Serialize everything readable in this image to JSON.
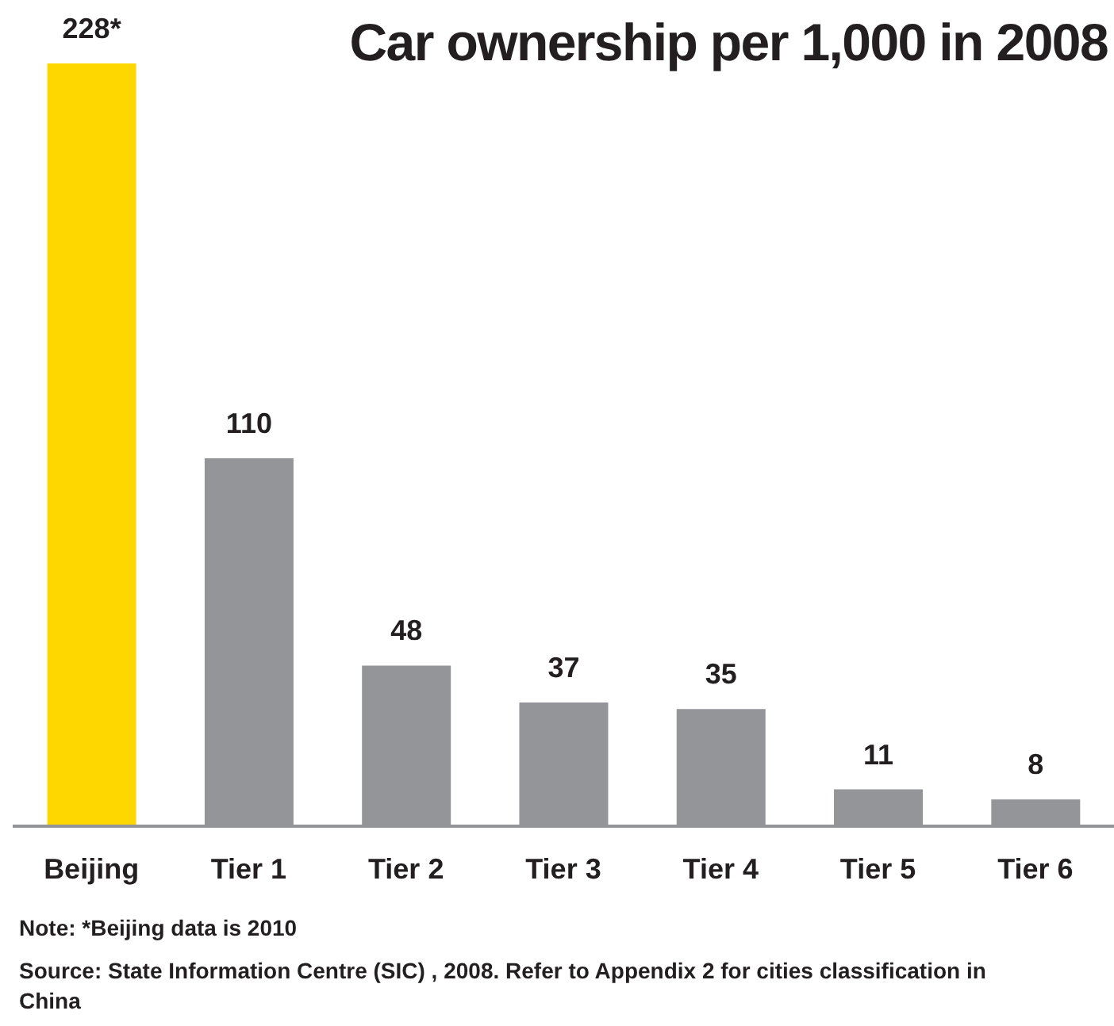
{
  "chart_data": {
    "type": "bar",
    "title": "Car ownership per 1,000 in 2008",
    "categories": [
      "Beijing",
      "Tier 1",
      "Tier 2",
      "Tier 3",
      "Tier 4",
      "Tier 5",
      "Tier 6"
    ],
    "values": [
      228,
      110,
      48,
      37,
      35,
      11,
      8
    ],
    "colors": [
      "#ffd700",
      "#939598",
      "#939598",
      "#939598",
      "#939598",
      "#939598",
      "#939598"
    ],
    "value_labels": [
      "228*",
      "110",
      "48",
      "37",
      "35",
      "11",
      "8"
    ],
    "grid": false,
    "legend": false,
    "annotations": [
      "Note: *Beijing data is 2010",
      "Source: State Information Centre (SIC) , 2008.  Refer  to Appendix 2 for cities classification in China"
    ]
  }
}
